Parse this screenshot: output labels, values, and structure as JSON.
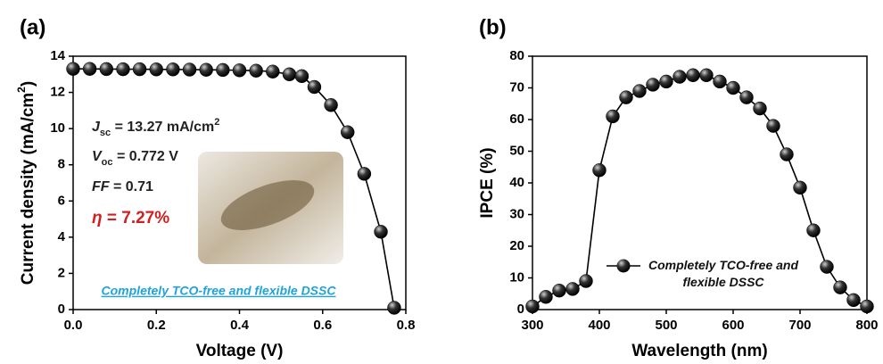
{
  "chart_data": [
    {
      "type": "line",
      "panel_label": "(a)",
      "x_label": "Voltage (V)",
      "y_label": {
        "text": "Current density (mA/cm",
        "superscript": "2",
        "end": ")"
      },
      "xlim": [
        0,
        0.8
      ],
      "xticks": [
        {
          "value": 0,
          "label": "0.0"
        },
        0.2,
        0.4,
        0.6,
        0.8
      ],
      "ylim": [
        0,
        14
      ],
      "yticks": [
        0,
        2,
        4,
        6,
        8,
        10,
        12,
        14
      ],
      "x": [
        0,
        0.04,
        0.08,
        0.12,
        0.16,
        0.2,
        0.24,
        0.28,
        0.32,
        0.36,
        0.4,
        0.44,
        0.48,
        0.52,
        0.55,
        0.58,
        0.62,
        0.66,
        0.7,
        0.74,
        0.772
      ],
      "series": [
        {
          "color": "#000000",
          "values": [
            13.3,
            13.3,
            13.29,
            13.28,
            13.28,
            13.27,
            13.27,
            13.26,
            13.25,
            13.24,
            13.22,
            13.2,
            13.15,
            13.0,
            12.9,
            12.3,
            11.3,
            9.8,
            7.5,
            4.3,
            0.1
          ]
        }
      ],
      "annotations": [
        {
          "symbol": "J",
          "subscript": "sc",
          "text": " = 13.27 mA/cm",
          "superscript": "2",
          "color": "#222222"
        },
        {
          "symbol": "V",
          "subscript": "oc",
          "text": " = 0.772 V",
          "color": "#222222"
        },
        {
          "symbol": "FF",
          "text": " = 0.71",
          "color": "#222222"
        },
        {
          "symbol": "η",
          "text": " = 7.27%",
          "color": "#d02020"
        }
      ],
      "caption": "Completely TCO-free and flexible DSSC",
      "caption_color": "#1fa3d8"
    },
    {
      "type": "line",
      "panel_label": "(b)",
      "x_label": "Wavelength (nm)",
      "y_label": {
        "text": "IPCE (%)"
      },
      "xlim": [
        300,
        800
      ],
      "xticks": [
        300,
        400,
        500,
        600,
        700,
        800
      ],
      "ylim": [
        0,
        80
      ],
      "yticks": [
        0,
        10,
        20,
        30,
        40,
        50,
        60,
        70,
        80
      ],
      "x": [
        300,
        320,
        340,
        360,
        380,
        400,
        420,
        440,
        460,
        480,
        500,
        520,
        540,
        560,
        580,
        600,
        620,
        640,
        660,
        680,
        700,
        720,
        740,
        760,
        780,
        800
      ],
      "series": [
        {
          "name": "Completely TCO-free and flexible DSSC",
          "color": "#000000",
          "values": [
            1,
            4,
            6,
            6.5,
            9,
            44,
            61,
            67,
            69,
            71,
            72,
            73.5,
            74,
            74,
            72,
            70,
            67,
            63.5,
            58,
            49,
            38.5,
            25,
            13.5,
            7,
            3,
            1
          ]
        }
      ]
    }
  ]
}
